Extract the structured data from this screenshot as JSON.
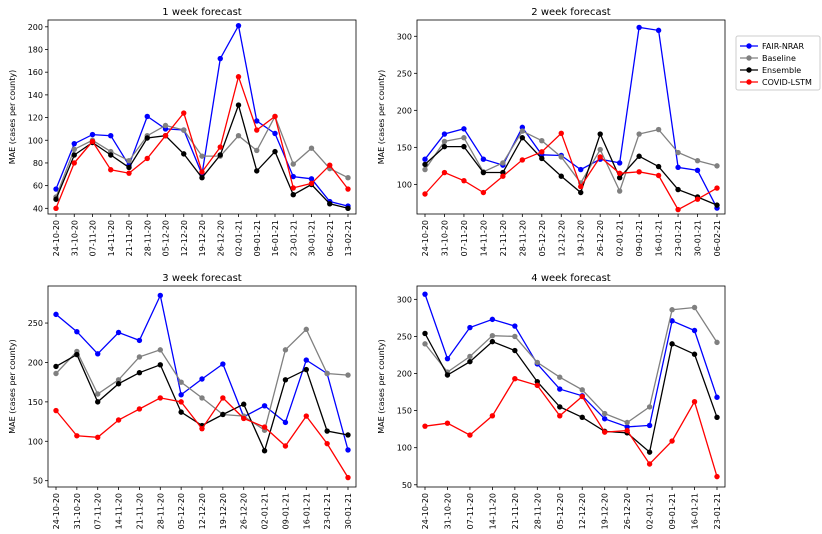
{
  "legend": {
    "placement": "right",
    "entries": [
      {
        "name": "FAIR-NRAR",
        "color": "#0000ff"
      },
      {
        "name": "Baseline",
        "color": "#808080"
      },
      {
        "name": "Ensemble",
        "color": "#000000"
      },
      {
        "name": "COVID-LSTM",
        "color": "#ff0000"
      }
    ]
  },
  "chart_data": [
    {
      "type": "line",
      "title": "1 week forecast",
      "xlabel": "",
      "ylabel": "MAE (cases per county)",
      "ylim": [
        35,
        206
      ],
      "yticks": [
        40,
        60,
        80,
        100,
        120,
        140,
        160,
        180,
        200
      ],
      "categories": [
        "24-10-20",
        "31-10-20",
        "07-11-20",
        "14-11-20",
        "21-11-20",
        "28-11-20",
        "05-12-20",
        "12-12-20",
        "19-12-20",
        "26-12-20",
        "02-01-21",
        "09-01-21",
        "16-01-21",
        "23-01-21",
        "30-01-21",
        "06-02-21",
        "13-02-21"
      ],
      "series": [
        {
          "name": "FAIR-NRAR",
          "color": "#0000ff",
          "values": [
            57,
            97,
            105,
            104,
            78,
            121,
            110,
            109,
            70,
            172,
            201,
            117,
            106,
            68,
            66,
            46,
            42
          ]
        },
        {
          "name": "Baseline",
          "color": "#808080",
          "values": [
            50,
            92,
            100,
            90,
            82,
            104,
            113,
            109,
            86,
            86,
            104,
            91,
            121,
            79,
            93,
            75,
            67
          ]
        },
        {
          "name": "Ensemble",
          "color": "#000000",
          "values": [
            48,
            87,
            98,
            87,
            76,
            102,
            104,
            88,
            67,
            87,
            131,
            73,
            90,
            52,
            61,
            44,
            40
          ]
        },
        {
          "name": "COVID-LSTM",
          "color": "#ff0000",
          "values": [
            40,
            80,
            99,
            74,
            71,
            84,
            104,
            124,
            72,
            94,
            156,
            109,
            121,
            58,
            62,
            78,
            57
          ]
        }
      ]
    },
    {
      "type": "line",
      "title": "2 week forecast",
      "xlabel": "",
      "ylabel": "MAE (cases per county)",
      "ylim": [
        60,
        322
      ],
      "yticks": [
        100,
        150,
        200,
        250,
        300
      ],
      "categories": [
        "24-10-20",
        "31-10-20",
        "07-11-20",
        "14-11-20",
        "21-11-20",
        "28-11-20",
        "05-12-20",
        "12-12-20",
        "19-12-20",
        "26-12-20",
        "02-01-21",
        "09-01-21",
        "16-01-21",
        "23-01-21",
        "30-01-21",
        "06-02-21"
      ],
      "series": [
        {
          "name": "FAIR-NRAR",
          "color": "#0000ff",
          "values": [
            134,
            168,
            175,
            134,
            126,
            177,
            140,
            139,
            120,
            134,
            129,
            312,
            308,
            123,
            119,
            68
          ]
        },
        {
          "name": "Baseline",
          "color": "#808080",
          "values": [
            120,
            158,
            163,
            117,
            129,
            172,
            159,
            137,
            102,
            147,
            91,
            168,
            174,
            143,
            132,
            125
          ]
        },
        {
          "name": "Ensemble",
          "color": "#000000",
          "values": [
            127,
            151,
            151,
            116,
            116,
            163,
            135,
            111,
            89,
            168,
            109,
            138,
            124,
            93,
            83,
            72
          ]
        },
        {
          "name": "COVID-LSTM",
          "color": "#ff0000",
          "values": [
            87,
            116,
            105,
            89,
            111,
            133,
            144,
            169,
            97,
            137,
            115,
            117,
            112,
            66,
            80,
            95
          ]
        }
      ]
    },
    {
      "type": "line",
      "title": "3 week forecast",
      "xlabel": "",
      "ylabel": "MAE (cases per county)",
      "ylim": [
        42,
        297
      ],
      "yticks": [
        50,
        100,
        150,
        200,
        250
      ],
      "categories": [
        "24-10-20",
        "31-10-20",
        "07-11-20",
        "14-11-20",
        "21-11-20",
        "28-11-20",
        "05-12-20",
        "12-12-20",
        "19-12-20",
        "26-12-20",
        "02-01-21",
        "09-01-21",
        "16-01-21",
        "23-01-21",
        "30-01-21"
      ],
      "series": [
        {
          "name": "FAIR-NRAR",
          "color": "#0000ff",
          "values": [
            261,
            239,
            211,
            238,
            228,
            285,
            159,
            179,
            198,
            131,
            145,
            124,
            203,
            186,
            89
          ]
        },
        {
          "name": "Baseline",
          "color": "#808080",
          "values": [
            186,
            214,
            160,
            178,
            207,
            216,
            175,
            155,
            134,
            132,
            114,
            216,
            242,
            186,
            184
          ]
        },
        {
          "name": "Ensemble",
          "color": "#000000",
          "values": [
            195,
            210,
            150,
            173,
            187,
            197,
            137,
            120,
            134,
            147,
            88,
            178,
            191,
            113,
            108
          ]
        },
        {
          "name": "COVID-LSTM",
          "color": "#ff0000",
          "values": [
            139,
            107,
            105,
            127,
            141,
            155,
            150,
            116,
            155,
            129,
            118,
            94,
            132,
            97,
            54
          ]
        }
      ]
    },
    {
      "type": "line",
      "title": "4 week forecast",
      "xlabel": "",
      "ylabel": "MAE (cases per county)",
      "ylim": [
        47,
        318
      ],
      "yticks": [
        50,
        100,
        150,
        200,
        250,
        300
      ],
      "categories": [
        "24-10-20",
        "31-10-20",
        "07-11-20",
        "14-11-20",
        "21-11-20",
        "28-11-20",
        "05-12-20",
        "12-12-20",
        "19-12-20",
        "26-12-20",
        "02-01-21",
        "09-01-21",
        "16-01-21",
        "23-01-21"
      ],
      "series": [
        {
          "name": "FAIR-NRAR",
          "color": "#0000ff",
          "values": [
            307,
            220,
            262,
            273,
            264,
            213,
            179,
            170,
            139,
            128,
            130,
            271,
            258,
            168
          ]
        },
        {
          "name": "Baseline",
          "color": "#808080",
          "values": [
            240,
            202,
            223,
            251,
            250,
            215,
            195,
            178,
            146,
            134,
            155,
            286,
            289,
            242
          ]
        },
        {
          "name": "Ensemble",
          "color": "#000000",
          "values": [
            254,
            198,
            216,
            243,
            231,
            189,
            155,
            141,
            122,
            120,
            94,
            240,
            226,
            141
          ]
        },
        {
          "name": "COVID-LSTM",
          "color": "#ff0000",
          "values": [
            129,
            133,
            117,
            143,
            193,
            184,
            143,
            169,
            121,
            123,
            78,
            109,
            162,
            61
          ]
        }
      ]
    }
  ]
}
